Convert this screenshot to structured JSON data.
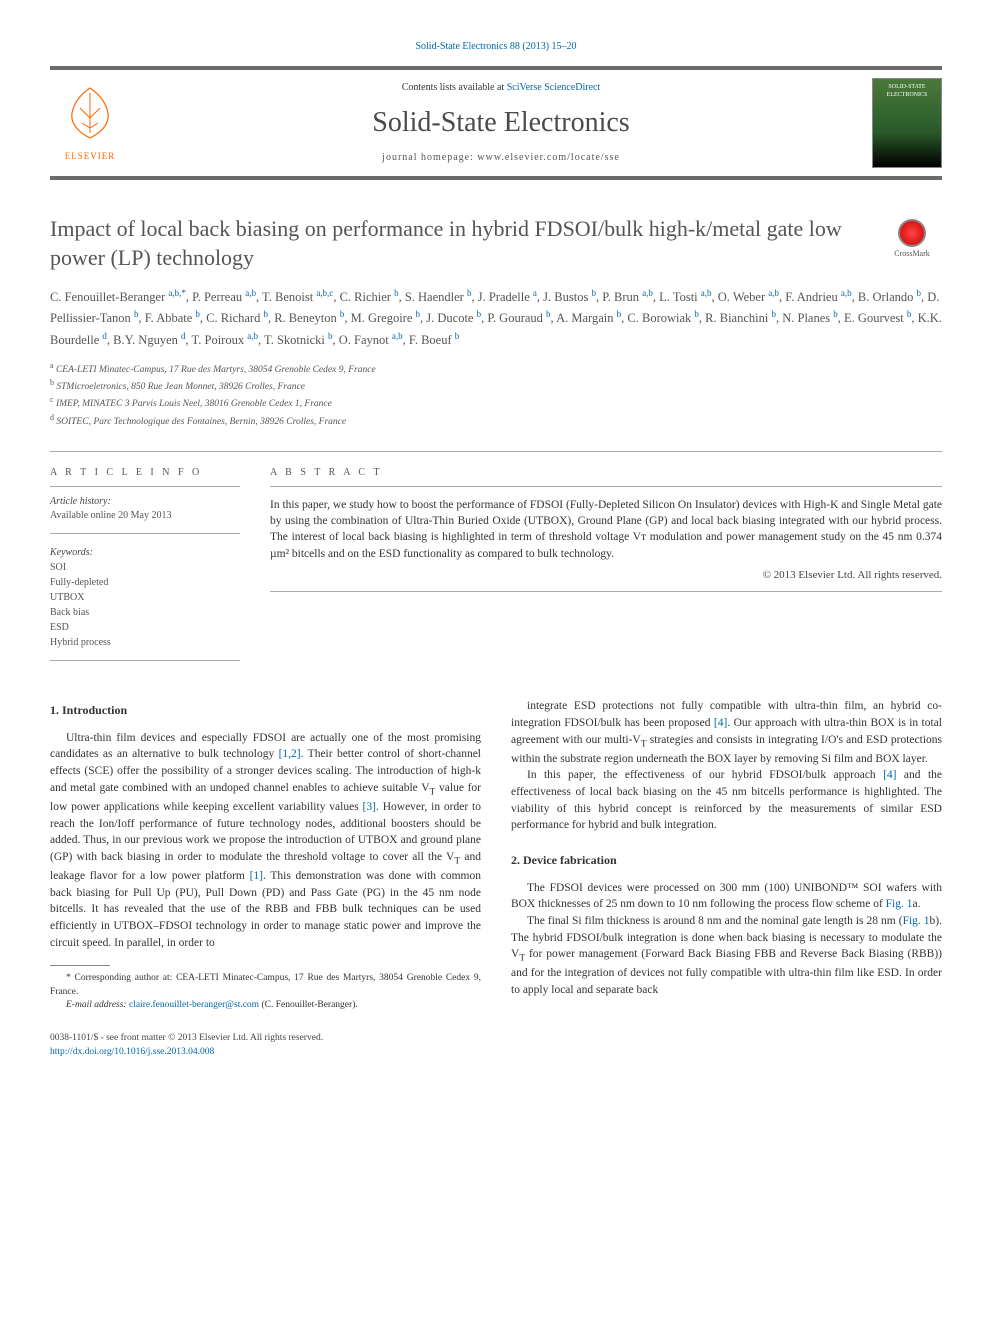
{
  "colors": {
    "link": "#0066aa",
    "text": "#333333",
    "heading": "#555555",
    "rule": "#6b6b6b",
    "elsevier_orange": "#ff6600",
    "cover_bg_top": "#4a7a3a",
    "cover_bg_bottom": "#000000",
    "crossmark_red": "#cc0000"
  },
  "typography": {
    "body_fontsize_pt": 11.5,
    "title_fontsize_pt": 22,
    "journal_fontsize_pt": 28,
    "small_fontsize_pt": 10
  },
  "citation": "Solid-State Electronics 88 (2013) 15–20",
  "header": {
    "contents_prefix": "Contents lists available at ",
    "contents_link": "SciVerse ScienceDirect",
    "journal_name": "Solid-State Electronics",
    "homepage_label": "journal homepage: ",
    "homepage_url": "www.elsevier.com/locate/sse",
    "publisher": "ELSEVIER",
    "cover_title": "SOLID-STATE ELECTRONICS"
  },
  "crossmark": "CrossMark",
  "title": "Impact of local back biasing on performance in hybrid FDSOI/bulk high-k/metal gate low power (LP) technology",
  "authors_html": "C. Fenouillet-Beranger <span class='aff'>a,b,*</span>, P. Perreau <span class='aff'>a,b</span>, T. Benoist <span class='aff'>a,b,c</span>, C. Richier <span class='aff'>b</span>, S. Haendler <span class='aff'>b</span>, J. Pradelle <span class='aff'>a</span>, J. Bustos <span class='aff'>b</span>, P. Brun <span class='aff'>a,b</span>, L. Tosti <span class='aff'>a,b</span>, O. Weber <span class='aff'>a,b</span>, F. Andrieu <span class='aff'>a,b</span>, B. Orlando <span class='aff'>b</span>, D. Pellissier-Tanon <span class='aff'>b</span>, F. Abbate <span class='aff'>b</span>, C. Richard <span class='aff'>b</span>, R. Beneyton <span class='aff'>b</span>, M. Gregoire <span class='aff'>b</span>, J. Ducote <span class='aff'>b</span>, P. Gouraud <span class='aff'>b</span>, A. Margain <span class='aff'>b</span>, C. Borowiak <span class='aff'>b</span>, R. Bianchini <span class='aff'>b</span>, N. Planes <span class='aff'>b</span>, E. Gourvest <span class='aff'>b</span>, K.K. Bourdelle <span class='aff'>d</span>, B.Y. Nguyen <span class='aff'>d</span>, T. Poiroux <span class='aff'>a,b</span>, T. Skotnicki <span class='aff'>b</span>, O. Faynot <span class='aff'>a,b</span>, F. Boeuf <span class='aff'>b</span>",
  "affiliations": [
    {
      "label": "a",
      "text": "CEA-LETI Minatec-Campus, 17 Rue des Martyrs, 38054 Grenoble Cedex 9, France"
    },
    {
      "label": "b",
      "text": "STMicroeletronics, 850 Rue Jean Monnet, 38926 Crolles, France"
    },
    {
      "label": "c",
      "text": "IMEP, MINATEC 3 Parvis Louis Neel, 38016 Grenoble Cedex 1, France"
    },
    {
      "label": "d",
      "text": "SOITEC, Parc Technologique des Fontaines, Bernin, 38926 Crolles, France"
    }
  ],
  "info": {
    "header": "A R T I C L E   I N F O",
    "history_label": "Article history:",
    "history_value": "Available online 20 May 2013",
    "keywords_label": "Keywords:",
    "keywords": [
      "SOI",
      "Fully-depleted",
      "UTBOX",
      "Back bias",
      "ESD",
      "Hybrid process"
    ]
  },
  "abstract": {
    "header": "A B S T R A C T",
    "text": "In this paper, we study how to boost the performance of FDSOI (Fully-Depleted Silicon On Insulator) devices with High-K and Single Metal gate by using the combination of Ultra-Thin Buried Oxide (UTBOX), Ground Plane (GP) and local back biasing integrated with our hybrid process. The interest of local back biasing is highlighted in term of threshold voltage Vᴛ modulation and power management study on the 45 nm 0.374 µm² bitcells and on the ESD functionality as compared to bulk technology.",
    "copyright": "© 2013 Elsevier Ltd. All rights reserved."
  },
  "sections": {
    "s1_title": "1. Introduction",
    "s1_p1": "Ultra-thin film devices and especially FDSOI are actually one of the most promising candidates as an alternative to bulk technology [1,2]. Their better control of short-channel effects (SCE) offer the possibility of a stronger devices scaling. The introduction of high-k and metal gate combined with an undoped channel enables to achieve suitable Vᴛ value for low power applications while keeping excellent variability values [3]. However, in order to reach the Ion/Ioff performance of future technology nodes, additional boosters should be added. Thus, in our previous work we propose the introduction of UTBOX and ground plane (GP) with back biasing in order to modulate the threshold voltage to cover all the Vᴛ and leakage flavor for a low power platform [1]. This demonstration was done with common back biasing for Pull Up (PU), Pull Down (PD) and Pass Gate (PG) in the 45 nm node bitcells. It has revealed that the use of the RBB and FBB bulk techniques can be used efficiently in UTBOX–FDSOI technology in order to manage static power and improve the circuit speed. In parallel, in order to",
    "s1_p1b": "integrate ESD protections not fully compatible with ultra-thin film, an hybrid co-integration FDSOI/bulk has been proposed [4]. Our approach with ultra-thin BOX is in total agreement with our multi-Vᴛ strategies and consists in integrating I/O's and ESD protections within the substrate region underneath the BOX layer by removing Si film and BOX layer.",
    "s1_p2": "In this paper, the effectiveness of our hybrid FDSOI/bulk approach [4] and the effectiveness of local back biasing on the 45 nm bitcells performance is highlighted. The viability of this hybrid concept is reinforced by the measurements of similar ESD performance for hybrid and bulk integration.",
    "s2_title": "2. Device fabrication",
    "s2_p1": "The FDSOI devices were processed on 300 mm (100) UNIBOND™ SOI wafers with BOX thicknesses of 25 nm down to 10 nm following the process flow scheme of Fig. 1a.",
    "s2_p2": "The final Si film thickness is around 8 nm and the nominal gate length is 28 nm (Fig. 1b). The hybrid FDSOI/bulk integration is done when back biasing is necessary to modulate the Vᴛ for power management (Forward Back Biasing FBB and Reverse Back Biasing (RBB)) and for the integration of devices not fully compatible with ultra-thin film like ESD. In order to apply local and separate back"
  },
  "footnote": {
    "corresponding": "* Corresponding author at: CEA-LETI Minatec-Campus, 17 Rue des Martyrs, 38054 Grenoble Cedex 9, France.",
    "email_label": "E-mail address: ",
    "email": "claire.fenouillet-beranger@st.com",
    "email_person": " (C. Fenouillet-Beranger)."
  },
  "bottom": {
    "line1": "0038-1101/$ - see front matter © 2013 Elsevier Ltd. All rights reserved.",
    "doi": "http://dx.doi.org/10.1016/j.sse.2013.04.008"
  }
}
